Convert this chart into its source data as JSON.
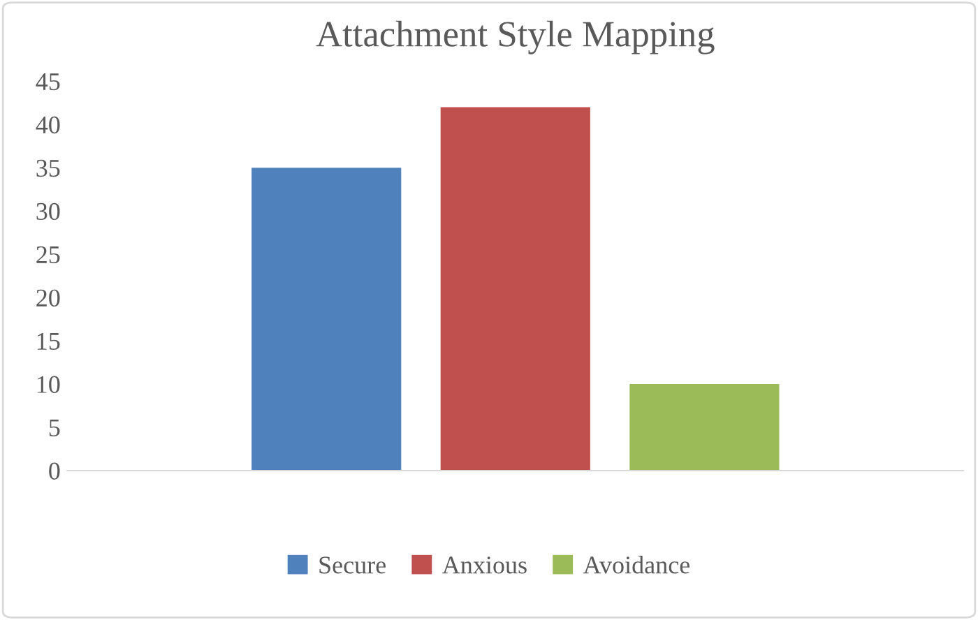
{
  "chart_data": {
    "type": "bar",
    "title": "Attachment Style Mapping",
    "categories": [
      null
    ],
    "series": [
      {
        "name": "Secure",
        "color": "#4f81bd",
        "values": [
          35
        ]
      },
      {
        "name": "Anxious",
        "color": "#c0504d",
        "values": [
          42
        ]
      },
      {
        "name": "Avoidance",
        "color": "#9bbb59",
        "values": [
          10
        ]
      }
    ],
    "ylim": [
      0,
      45
    ],
    "yticks": [
      0,
      5,
      10,
      15,
      20,
      25,
      30,
      35,
      40,
      45
    ],
    "grid": false,
    "legend": "bottom"
  }
}
